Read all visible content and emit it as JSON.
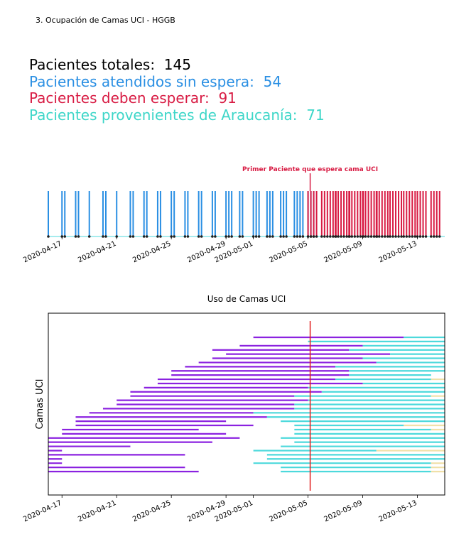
{
  "heading": "3. Ocupación de Camas UCI - HGGB",
  "stats": [
    {
      "label": "Pacientes totales:",
      "value": "145",
      "color": "#000000"
    },
    {
      "label": "Pacientes atendidos sin espera:",
      "value": "54",
      "color": "#2a8fe3"
    },
    {
      "label": "Pacientes deben esperar:",
      "value": "91",
      "color": "#d81b43"
    },
    {
      "label": "Pacientes provenientes de Araucanía:",
      "value": "71",
      "color": "#3dd6c8"
    }
  ],
  "colors": {
    "no_wait": "#2a8fe3",
    "wait": "#d81b43",
    "occupied": "#8b22e0",
    "after": "#4dd9dc",
    "waiting_period": "#f0e0a8",
    "marker": "#e11d1d"
  },
  "chart_data": [
    {
      "type": "timeline",
      "annotation": "Primer Paciente que espera cama UCI",
      "annotation_date": "2020-05-05",
      "x_ticks": [
        "2020-04-17",
        "2020-04-21",
        "2020-04-25",
        "2020-04-29",
        "2020-05-01",
        "2020-05-05",
        "2020-05-09",
        "2020-05-13"
      ],
      "xlim": [
        "2020-04-16",
        "2020-05-15"
      ],
      "series": [
        {
          "name": "",
          "color": "#2a8fe3",
          "dates": [
            "2020-04-16",
            "2020-04-17",
            "2020-04-17",
            "2020-04-18",
            "2020-04-18",
            "2020-04-19",
            "2020-04-20",
            "2020-04-20",
            "2020-04-21",
            "2020-04-22",
            "2020-04-22",
            "2020-04-23",
            "2020-04-23",
            "2020-04-24",
            "2020-04-24",
            "2020-04-25",
            "2020-04-25",
            "2020-04-26",
            "2020-04-26",
            "2020-04-27",
            "2020-04-27",
            "2020-04-28",
            "2020-04-28",
            "2020-04-29",
            "2020-04-29",
            "2020-04-29",
            "2020-04-30",
            "2020-04-30",
            "2020-05-01",
            "2020-05-01",
            "2020-05-01",
            "2020-05-02",
            "2020-05-02",
            "2020-05-02",
            "2020-05-03",
            "2020-05-03",
            "2020-05-03",
            "2020-05-04",
            "2020-05-04",
            "2020-05-04",
            "2020-05-04",
            "2020-05-05",
            "2020-05-05",
            "2020-05-05"
          ]
        },
        {
          "name": "",
          "color": "#d81b43",
          "dates": [
            "2020-05-05",
            "2020-05-05",
            "2020-05-05",
            "2020-05-05",
            "2020-05-06",
            "2020-05-06",
            "2020-05-06",
            "2020-05-06",
            "2020-05-06",
            "2020-05-06",
            "2020-05-07",
            "2020-05-07",
            "2020-05-07",
            "2020-05-07",
            "2020-05-07",
            "2020-05-07",
            "2020-05-08",
            "2020-05-08",
            "2020-05-08",
            "2020-05-08",
            "2020-05-08",
            "2020-05-08",
            "2020-05-09",
            "2020-05-09",
            "2020-05-09",
            "2020-05-09",
            "2020-05-09",
            "2020-05-09",
            "2020-05-10",
            "2020-05-10",
            "2020-05-10",
            "2020-05-10",
            "2020-05-10",
            "2020-05-11",
            "2020-05-11",
            "2020-05-11",
            "2020-05-11",
            "2020-05-11",
            "2020-05-12",
            "2020-05-12",
            "2020-05-12",
            "2020-05-12",
            "2020-05-12",
            "2020-05-13",
            "2020-05-13",
            "2020-05-13",
            "2020-05-13",
            "2020-05-14",
            "2020-05-14",
            "2020-05-14",
            "2020-05-14"
          ]
        }
      ]
    },
    {
      "type": "gantt",
      "title": "Uso de Camas UCI",
      "ylabel": "Camas UCI",
      "vline_date": "2020-05-05",
      "x_ticks": [
        "2020-04-17",
        "2020-04-21",
        "2020-04-25",
        "2020-04-29",
        "2020-05-01",
        "2020-05-05",
        "2020-05-09",
        "2020-05-13"
      ],
      "xlim": [
        "2020-04-16",
        "2020-05-15"
      ],
      "rows": [
        {
          "bed": 1,
          "segments": [
            [
              "2020-05-01",
              "2020-05-12",
              "occupied"
            ],
            [
              "2020-05-12",
              "2020-05-15",
              "after"
            ]
          ]
        },
        {
          "bed": 2,
          "segments": [
            [
              "2020-05-05",
              "2020-05-15",
              "after"
            ]
          ]
        },
        {
          "bed": 3,
          "segments": [
            [
              "2020-04-30",
              "2020-05-09",
              "occupied"
            ],
            [
              "2020-05-09",
              "2020-05-13",
              "after"
            ],
            [
              "2020-05-13",
              "2020-05-15",
              "after"
            ]
          ]
        },
        {
          "bed": 4,
          "segments": [
            [
              "2020-04-28",
              "2020-05-08",
              "occupied"
            ],
            [
              "2020-05-08",
              "2020-05-15",
              "after"
            ]
          ]
        },
        {
          "bed": 5,
          "segments": [
            [
              "2020-04-29",
              "2020-05-11",
              "occupied"
            ],
            [
              "2020-05-11",
              "2020-05-15",
              "after"
            ]
          ]
        },
        {
          "bed": 6,
          "segments": [
            [
              "2020-04-28",
              "2020-05-09",
              "occupied"
            ],
            [
              "2020-05-09",
              "2020-05-15",
              "after"
            ]
          ]
        },
        {
          "bed": 7,
          "segments": [
            [
              "2020-04-27",
              "2020-05-10",
              "occupied"
            ],
            [
              "2020-05-10",
              "2020-05-15",
              "after"
            ]
          ]
        },
        {
          "bed": 8,
          "segments": [
            [
              "2020-04-26",
              "2020-05-07",
              "occupied"
            ],
            [
              "2020-05-07",
              "2020-05-15",
              "after"
            ]
          ]
        },
        {
          "bed": 9,
          "segments": [
            [
              "2020-04-25",
              "2020-05-08",
              "occupied"
            ],
            [
              "2020-05-08",
              "2020-05-15",
              "after"
            ]
          ]
        },
        {
          "bed": 10,
          "segments": [
            [
              "2020-04-25",
              "2020-05-08",
              "occupied"
            ],
            [
              "2020-05-08",
              "2020-05-14",
              "after"
            ]
          ]
        },
        {
          "bed": 11,
          "segments": [
            [
              "2020-04-24",
              "2020-05-07",
              "occupied"
            ],
            [
              "2020-05-07",
              "2020-05-14",
              "after"
            ],
            [
              "2020-05-14",
              "2020-05-15",
              "waiting_period"
            ]
          ]
        },
        {
          "bed": 12,
          "segments": [
            [
              "2020-04-24",
              "2020-05-09",
              "occupied"
            ],
            [
              "2020-05-09",
              "2020-05-15",
              "after"
            ]
          ]
        },
        {
          "bed": 13,
          "segments": [
            [
              "2020-04-23",
              "2020-05-05",
              "occupied"
            ],
            [
              "2020-05-05",
              "2020-05-15",
              "after"
            ]
          ]
        },
        {
          "bed": 14,
          "segments": [
            [
              "2020-04-22",
              "2020-05-06",
              "occupied"
            ],
            [
              "2020-05-06",
              "2020-05-15",
              "after"
            ]
          ]
        },
        {
          "bed": 15,
          "segments": [
            [
              "2020-04-22",
              "2020-05-04",
              "occupied"
            ],
            [
              "2020-05-04",
              "2020-05-14",
              "after"
            ],
            [
              "2020-05-14",
              "2020-05-15",
              "waiting_period"
            ]
          ]
        },
        {
          "bed": 16,
          "segments": [
            [
              "2020-04-21",
              "2020-05-05",
              "occupied"
            ],
            [
              "2020-05-05",
              "2020-05-15",
              "after"
            ]
          ]
        },
        {
          "bed": 17,
          "segments": [
            [
              "2020-04-21",
              "2020-05-04",
              "occupied"
            ],
            [
              "2020-05-04",
              "2020-05-15",
              "after"
            ]
          ]
        },
        {
          "bed": 18,
          "segments": [
            [
              "2020-04-20",
              "2020-05-04",
              "occupied"
            ],
            [
              "2020-05-04",
              "2020-05-15",
              "after"
            ]
          ]
        },
        {
          "bed": 19,
          "segments": [
            [
              "2020-04-19",
              "2020-05-01",
              "occupied"
            ],
            [
              "2020-05-01",
              "2020-05-15",
              "after"
            ]
          ]
        },
        {
          "bed": 20,
          "segments": [
            [
              "2020-04-18",
              "2020-05-02",
              "occupied"
            ],
            [
              "2020-05-02",
              "2020-05-15",
              "after"
            ]
          ]
        },
        {
          "bed": 21,
          "segments": [
            [
              "2020-04-18",
              "2020-04-29",
              "occupied"
            ],
            [
              "2020-05-03",
              "2020-05-15",
              "after"
            ]
          ]
        },
        {
          "bed": 22,
          "segments": [
            [
              "2020-04-18",
              "2020-05-01",
              "occupied"
            ],
            [
              "2020-05-04",
              "2020-05-12",
              "after"
            ],
            [
              "2020-05-12",
              "2020-05-15",
              "waiting_period"
            ]
          ]
        },
        {
          "bed": 23,
          "segments": [
            [
              "2020-04-17",
              "2020-04-27",
              "occupied"
            ],
            [
              "2020-05-04",
              "2020-05-14",
              "after"
            ],
            [
              "2020-05-14",
              "2020-05-15",
              "waiting_period"
            ]
          ]
        },
        {
          "bed": 24,
          "segments": [
            [
              "2020-04-17",
              "2020-04-29",
              "occupied"
            ],
            [
              "2020-05-04",
              "2020-05-15",
              "after"
            ]
          ]
        },
        {
          "bed": 25,
          "segments": [
            [
              "2020-04-16",
              "2020-04-30",
              "occupied"
            ],
            [
              "2020-05-03",
              "2020-05-15",
              "after"
            ]
          ]
        },
        {
          "bed": 26,
          "segments": [
            [
              "2020-04-16",
              "2020-04-28",
              "occupied"
            ],
            [
              "2020-05-04",
              "2020-05-15",
              "after"
            ]
          ]
        },
        {
          "bed": 27,
          "segments": [
            [
              "2020-04-16",
              "2020-04-22",
              "occupied"
            ],
            [
              "2020-05-03",
              "2020-05-15",
              "after"
            ]
          ]
        },
        {
          "bed": 28,
          "segments": [
            [
              "2020-04-16",
              "2020-04-17",
              "occupied"
            ],
            [
              "2020-05-01",
              "2020-05-10",
              "after"
            ],
            [
              "2020-05-10",
              "2020-05-15",
              "waiting_period"
            ]
          ]
        },
        {
          "bed": 29,
          "segments": [
            [
              "2020-04-16",
              "2020-04-26",
              "occupied"
            ],
            [
              "2020-05-02",
              "2020-05-15",
              "after"
            ]
          ]
        },
        {
          "bed": 30,
          "segments": [
            [
              "2020-04-16",
              "2020-04-17",
              "occupied"
            ],
            [
              "2020-05-02",
              "2020-05-15",
              "after"
            ]
          ]
        },
        {
          "bed": 31,
          "segments": [
            [
              "2020-04-16",
              "2020-04-17",
              "occupied"
            ],
            [
              "2020-05-01",
              "2020-05-14",
              "after"
            ],
            [
              "2020-05-14",
              "2020-05-15",
              "waiting_period"
            ]
          ]
        },
        {
          "bed": 32,
          "segments": [
            [
              "2020-04-16",
              "2020-04-26",
              "occupied"
            ],
            [
              "2020-05-03",
              "2020-05-14",
              "after"
            ],
            [
              "2020-05-14",
              "2020-05-15",
              "waiting_period"
            ]
          ]
        },
        {
          "bed": 33,
          "segments": [
            [
              "2020-04-16",
              "2020-04-27",
              "occupied"
            ],
            [
              "2020-05-03",
              "2020-05-14",
              "after"
            ],
            [
              "2020-05-14",
              "2020-05-15",
              "waiting_period"
            ]
          ]
        }
      ]
    }
  ]
}
